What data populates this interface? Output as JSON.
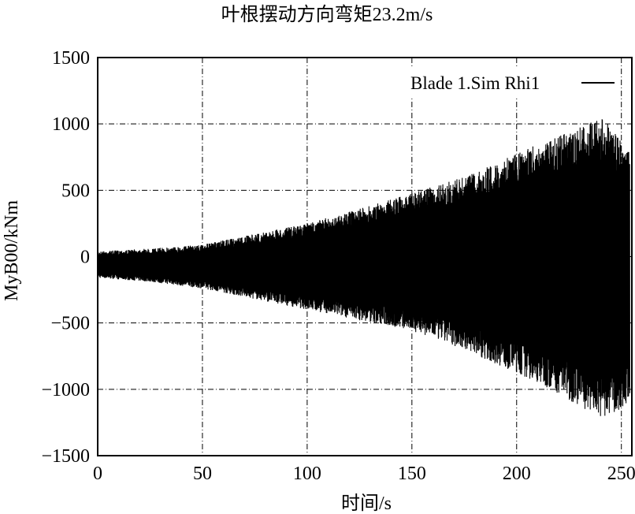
{
  "chart_data": {
    "type": "line",
    "title": "叶根摆动方向弯矩23.2m/s",
    "xlabel": "时间/s",
    "ylabel": "MyB00/kNm",
    "xlim": [
      0,
      255
    ],
    "ylim": [
      -1500,
      1500
    ],
    "x_ticks": [
      0,
      50,
      100,
      150,
      200,
      250
    ],
    "x_tick_labels": [
      "0",
      "50",
      "100",
      "150",
      "200",
      "250"
    ],
    "y_ticks": [
      1500,
      1000,
      500,
      0,
      -500,
      -1000,
      -1500
    ],
    "y_tick_labels": [
      "1500",
      "1000",
      "500",
      "0",
      "−500",
      "−1000",
      "−1500"
    ],
    "grid": true,
    "legend": "top-right",
    "series": [
      {
        "name": "Blade 1.Sim Rhi1",
        "color": "#000000",
        "envelope_x": [
          0,
          25,
          50,
          75,
          100,
          125,
          150,
          175,
          200,
          215,
          225,
          235,
          240,
          245,
          250,
          254
        ],
        "envelope_upper": [
          40,
          60,
          90,
          170,
          250,
          360,
          480,
          600,
          780,
          880,
          940,
          1010,
          1050,
          980,
          900,
          800
        ],
        "envelope_lower": [
          -160,
          -190,
          -240,
          -320,
          -400,
          -480,
          -560,
          -700,
          -880,
          -990,
          -1080,
          -1170,
          -1220,
          -1190,
          -1150,
          -1100
        ]
      }
    ]
  }
}
